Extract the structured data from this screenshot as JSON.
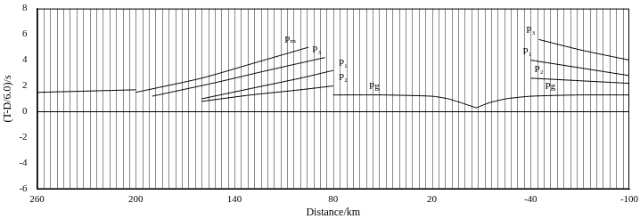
{
  "chart_data": {
    "type": "line",
    "x_label": "Distance/km",
    "y_label": "(T-D/6.0)/s",
    "color": "#000000",
    "grid": false,
    "legend": false,
    "xlim": [
      260,
      -100
    ],
    "xticks": [
      260,
      200,
      140,
      80,
      20,
      -40,
      -100
    ],
    "ylim": [
      -6,
      8
    ],
    "yticks": [
      -6,
      -4,
      -2,
      0,
      2,
      4,
      6,
      8
    ],
    "traces": [
      260,
      256,
      252,
      248,
      244,
      240,
      236,
      232,
      228,
      224,
      220,
      216,
      212,
      208,
      204,
      200,
      196,
      192,
      188,
      184,
      180,
      176,
      172,
      168,
      164,
      160,
      156,
      152,
      148,
      144,
      140,
      136,
      132,
      128,
      124,
      120,
      116,
      112,
      108,
      104,
      100,
      96,
      92,
      88,
      84,
      80,
      76,
      72,
      68,
      64,
      60,
      56,
      52,
      48,
      44,
      40,
      36,
      32,
      28,
      24,
      20,
      16,
      12,
      8,
      4,
      0,
      -4,
      -8,
      -12,
      -16,
      -20,
      -24,
      -28,
      -32,
      -36,
      -40,
      -44,
      -48,
      -52,
      -56,
      -60,
      -64,
      -68,
      -72,
      -76,
      -80,
      -84,
      -88,
      -92,
      -96,
      -100
    ],
    "curves": [
      {
        "x": [
          80,
          50,
          20,
          10,
          0,
          -7
        ],
        "y": [
          1.3,
          1.3,
          1.2,
          1.0,
          0.6,
          0.3
        ]
      },
      {
        "x": [
          -7,
          -15,
          -25,
          -40,
          -70,
          -100
        ],
        "y": [
          0.3,
          0.7,
          1.0,
          1.2,
          1.3,
          1.3
        ]
      },
      {
        "x": [
          260,
          230,
          200
        ],
        "y": [
          1.5,
          1.6,
          1.7
        ]
      },
      {
        "x": [
          200,
          160,
          130,
          95
        ],
        "y": [
          1.5,
          2.6,
          3.7,
          5.0
        ]
      },
      {
        "x": [
          190,
          150,
          120,
          85
        ],
        "y": [
          1.2,
          2.3,
          3.2,
          4.2
        ]
      },
      {
        "x": [
          160,
          130,
          100,
          80
        ],
        "y": [
          1.0,
          1.8,
          2.6,
          3.2
        ]
      },
      {
        "x": [
          160,
          130,
          100,
          80
        ],
        "y": [
          0.8,
          1.3,
          1.7,
          2.0
        ]
      },
      {
        "x": [
          -45,
          -70,
          -100
        ],
        "y": [
          5.6,
          4.8,
          4.0
        ]
      },
      {
        "x": [
          -40,
          -70,
          -100
        ],
        "y": [
          4.0,
          3.4,
          2.8
        ]
      },
      {
        "x": [
          -40,
          -70,
          -100
        ],
        "y": [
          2.6,
          2.4,
          2.2
        ]
      }
    ],
    "annotations": [
      {
        "text": "Pₘ",
        "x": 106,
        "y": 5.2
      },
      {
        "text": "P₃",
        "x": 90,
        "y": 4.4
      },
      {
        "text": "P₁",
        "x": 74,
        "y": 3.4
      },
      {
        "text": "P₂",
        "x": 74,
        "y": 2.3
      },
      {
        "text": "Pg",
        "x": 55,
        "y": 1.6
      },
      {
        "text": "P₃",
        "x": -40,
        "y": 5.9
      },
      {
        "text": "P₁",
        "x": -38,
        "y": 4.3
      },
      {
        "text": "P₂",
        "x": -45,
        "y": 2.9
      },
      {
        "text": "Pg",
        "x": -52,
        "y": 1.6
      }
    ]
  }
}
